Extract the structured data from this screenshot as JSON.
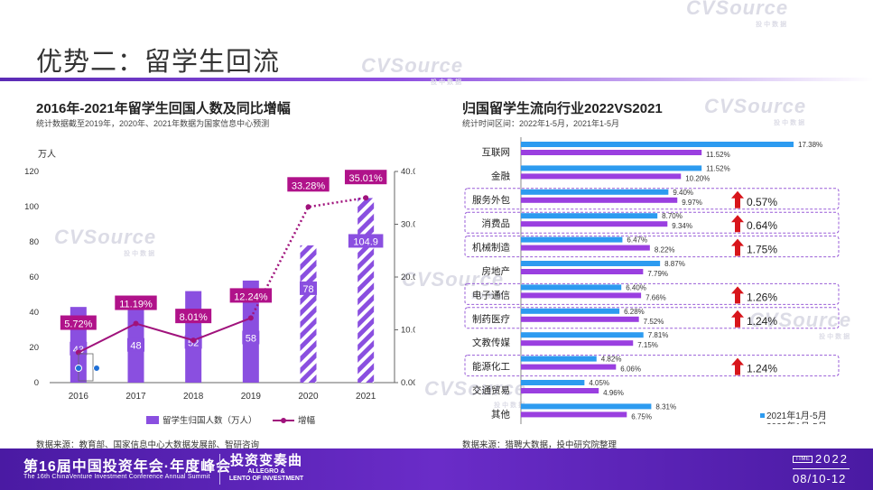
{
  "page": {
    "title": "优势二：留学生回流",
    "watermark": "CVSource",
    "watermark_sub": "投中数据"
  },
  "left": {
    "title": "2016年-2021年留学生回国人数及同比增幅",
    "note": "统计数据截至2019年，2020年、2021年数据为国家信息中心预测",
    "unit": "万人",
    "source": "数据来源：教育部、国家信息中心大数据发展部、智研咨询"
  },
  "right": {
    "title": "归国留学生流向行业2022VS2021",
    "note": "统计时间区间：2022年1-5月，2021年1-5月",
    "source": "数据来源：猎聘大数据，投中研究院整理"
  },
  "chart_data": [
    {
      "type": "bar",
      "title": "2016年-2021年留学生回国人数及同比增幅",
      "ylabel": "万人",
      "categories": [
        "2016",
        "2017",
        "2018",
        "2019",
        "2020",
        "2021"
      ],
      "series": [
        {
          "name": "留学生归国人数（万人）",
          "type": "bar",
          "values": [
            43,
            48,
            52,
            58,
            78,
            104.9
          ],
          "labels": [
            "43",
            "48",
            "52",
            "58",
            "78",
            "104.9"
          ],
          "predicted": [
            false,
            false,
            false,
            false,
            true,
            true
          ]
        },
        {
          "name": "增幅",
          "type": "line",
          "values": [
            5.72,
            11.19,
            8.01,
            12.24,
            33.28,
            35.01
          ],
          "labels": [
            "5.72%",
            "11.19%",
            "8.01%",
            "12.24%",
            "33.28%",
            "35.01%"
          ]
        }
      ],
      "ylim": [
        0,
        120
      ],
      "yticks": [
        "0",
        "20",
        "40",
        "60",
        "80",
        "100",
        "120"
      ],
      "y2lim": [
        0,
        40
      ],
      "y2ticks": [
        "0.00%",
        "10.00%",
        "20.00%",
        "30.00%",
        "40.00%"
      ],
      "legend": "bottom",
      "colors": {
        "bar": "#8a4fe0",
        "line": "#a0127c",
        "label_bg": "#b0128a"
      }
    },
    {
      "type": "bar",
      "orientation": "horizontal",
      "title": "归国留学生流向行业2022VS2021",
      "categories": [
        "互联网",
        "金融",
        "服务外包",
        "消费品",
        "机械制造",
        "房地产",
        "电子通信",
        "制药医疗",
        "文教传媒",
        "能源化工",
        "交通贸易",
        "其他"
      ],
      "series": [
        {
          "name": "2021年1月-5月",
          "values": [
            17.38,
            11.52,
            9.4,
            8.7,
            6.47,
            8.87,
            6.4,
            6.28,
            7.81,
            4.82,
            4.05,
            8.31
          ],
          "labels": [
            "17.38%",
            "11.52%",
            "9.40%",
            "8.70%",
            "6.47%",
            "8.87%",
            "6.40%",
            "6.28%",
            "7.81%",
            "4.82%",
            "4.05%",
            "8.31%"
          ]
        },
        {
          "name": "2022年1月-5月",
          "values": [
            11.52,
            10.2,
            9.97,
            9.34,
            8.22,
            7.79,
            7.66,
            7.52,
            7.15,
            6.06,
            4.96,
            6.75
          ],
          "labels": [
            "11.52%",
            "10.20%",
            "9.97%",
            "9.34%",
            "8.22%",
            "7.79%",
            "7.66%",
            "7.52%",
            "7.15%",
            "6.06%",
            "4.96%",
            "6.75%"
          ]
        }
      ],
      "xlim": [
        0,
        18
      ],
      "legend": "bottom-right",
      "highlights": [
        {
          "category": "服务外包",
          "change": "0.57%"
        },
        {
          "category": "消费品",
          "change": "0.64%"
        },
        {
          "category": "机械制造",
          "change": "1.75%"
        },
        {
          "category": "电子通信",
          "change": "1.26%"
        },
        {
          "category": "制药医疗",
          "change": "1.24%"
        },
        {
          "category": "能源化工",
          "change": "1.24%"
        }
      ],
      "colors": {
        "s2021": "#2d9bf0",
        "s2022": "#9a3fe0",
        "arrow": "#d8151b",
        "box": "#9a5fd8"
      }
    }
  ],
  "footer": {
    "title": "第16届中国投资年会·年度峰会",
    "subtitle": "The 16th ChinaVenture Investment Conference Annual Summit",
    "logo_main": "投资变奏曲",
    "logo_line1": "ALLEGRO &",
    "logo_line2": "LENTO OF INVESTMENT",
    "time_label": "TIME",
    "year": "2022",
    "date": "08/10-12"
  }
}
